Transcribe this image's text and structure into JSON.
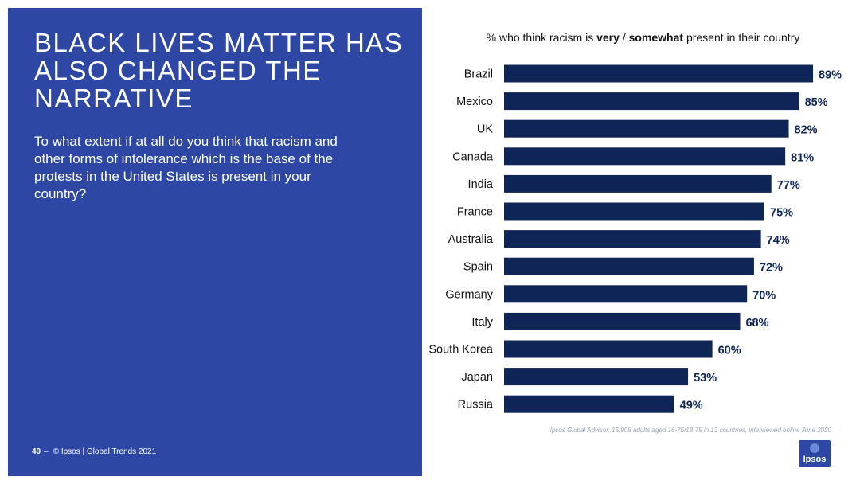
{
  "headline": "BLACK LIVES MATTER HAS ALSO CHANGED THE NARRATIVE",
  "question": "To what extent if at all do you think that racism and other forms of intolerance which is the base of the protests in the United States is present in your country?",
  "footer": {
    "page_number": "40",
    "dash": "–",
    "copyright": "© Ipsos | Global Trends 2021"
  },
  "chart_title": {
    "part1": "% who think racism is ",
    "very": "very",
    "sep": " / ",
    "somewhat": "somewhat",
    "part2": " present in their country"
  },
  "source_note": "Ipsos Global Advisor: 15,908 adults aged 16-75/18-75 in 13 countries, interviewed online June 2020",
  "logo_text": "Ipsos",
  "colors": {
    "panel": "#2e47a5",
    "bar": "#0f2457",
    "value_label": "#0f2457"
  },
  "chart_data": {
    "type": "bar",
    "orientation": "horizontal",
    "title": "% who think racism is very / somewhat present in their country",
    "categories": [
      "Brazil",
      "Mexico",
      "UK",
      "Canada",
      "India",
      "France",
      "Australia",
      "Spain",
      "Germany",
      "Italy",
      "South Korea",
      "Japan",
      "Russia"
    ],
    "values": [
      89,
      85,
      82,
      81,
      77,
      75,
      74,
      72,
      70,
      68,
      60,
      53,
      49
    ],
    "value_labels": [
      "89%",
      "85%",
      "82%",
      "81%",
      "77%",
      "75%",
      "74%",
      "72%",
      "70%",
      "68%",
      "60%",
      "53%",
      "49%"
    ],
    "xlim": [
      0,
      100
    ],
    "grid": false,
    "legend": "none"
  }
}
